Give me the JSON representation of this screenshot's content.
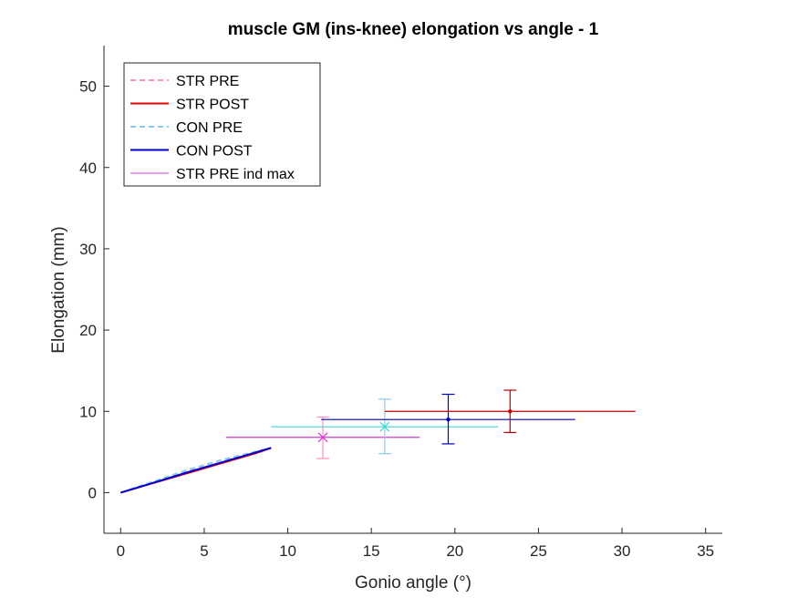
{
  "chart_data": {
    "type": "line",
    "title": "muscle GM (ins-knee) elongation vs angle - 1",
    "xlabel": "Gonio angle (°)",
    "ylabel": "Elongation (mm)",
    "xlim": [
      -1,
      36
    ],
    "ylim": [
      -5,
      55
    ],
    "xticks": [
      0,
      5,
      10,
      15,
      20,
      25,
      30,
      35
    ],
    "yticks": [
      0,
      10,
      20,
      30,
      40,
      50
    ],
    "grid": false,
    "legend_location": "top-left",
    "series": [
      {
        "name": "STR PRE",
        "color": "#ff8fb6",
        "style": "dashed",
        "width": 2,
        "x": [
          0,
          2,
          4,
          6,
          8,
          9
        ],
        "y": [
          0,
          1.35,
          2.7,
          4.0,
          5.0,
          5.5
        ]
      },
      {
        "name": "STR POST",
        "color": "#e00000",
        "style": "solid",
        "width": 2,
        "x": [
          0,
          2,
          4,
          6,
          8,
          9
        ],
        "y": [
          0,
          1.2,
          2.4,
          3.6,
          4.8,
          5.5
        ]
      },
      {
        "name": "CON PRE",
        "color": "#87cdee",
        "style": "dashed",
        "width": 2,
        "x": [
          0,
          2,
          4,
          6,
          8,
          9
        ],
        "y": [
          0,
          1.4,
          2.8,
          4.0,
          5.0,
          5.5
        ]
      },
      {
        "name": "CON POST",
        "color": "#0000d0",
        "style": "solid",
        "width": 2,
        "x": [
          0,
          2,
          4,
          6,
          8,
          9
        ],
        "y": [
          0,
          1.25,
          2.5,
          3.7,
          4.9,
          5.5
        ]
      }
    ],
    "max_points": [
      {
        "name": "STR PRE ind max",
        "color": "#d03cd0",
        "marker": "x",
        "x": 12.1,
        "y": 6.8,
        "xerr": [
          6.3,
          17.9
        ],
        "yerr": [
          4.2,
          9.3
        ],
        "ycap_color": "#ff8fb6"
      },
      {
        "name": "",
        "color": "#40d8d8",
        "marker": "x",
        "x": 15.8,
        "y": 8.1,
        "xerr": [
          9.0,
          22.6
        ],
        "yerr": [
          4.8,
          11.5
        ],
        "ycap_color": "#87cdee"
      },
      {
        "name": "",
        "color": "#0000c0",
        "marker": "dot",
        "x": 19.6,
        "y": 9.0,
        "xerr": [
          12.0,
          27.2
        ],
        "yerr": [
          6.0,
          12.1
        ],
        "ycap_color": "#0000c0"
      },
      {
        "name": "",
        "color": "#c00000",
        "marker": "dot",
        "x": 23.3,
        "y": 10.0,
        "xerr": [
          15.8,
          30.8
        ],
        "yerr": [
          7.4,
          12.6
        ],
        "ycap_color": "#c00000"
      }
    ],
    "legend": [
      {
        "label": "STR PRE",
        "color": "#ff8fb6",
        "style": "dashed",
        "width": 2
      },
      {
        "label": "STR POST",
        "color": "#e00000",
        "style": "solid",
        "width": 2
      },
      {
        "label": "CON PRE",
        "color": "#87cdee",
        "style": "dashed",
        "width": 2
      },
      {
        "label": "CON POST",
        "color": "#0000d0",
        "style": "solid",
        "width": 2
      },
      {
        "label": "STR PRE ind max",
        "color": "#d03cd0",
        "style": "solid",
        "width": 1
      }
    ]
  }
}
